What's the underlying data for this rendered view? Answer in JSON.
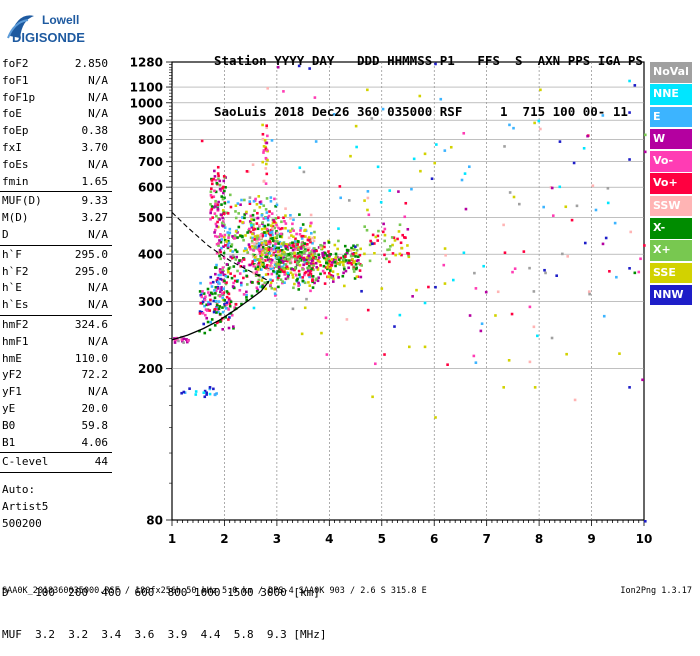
{
  "logo": {
    "line1": "Lowell",
    "line2": "DIGISONDE"
  },
  "header": {
    "row1": "Station YYYY DAY   DDD HHMMSS P1   FFS  S  AXN PPS IGA PS",
    "row2": "SaoLuis 2018 Dec26 360 035000 RSF     1  715 100 00- 11"
  },
  "params": [
    {
      "label": "foF2",
      "value": "2.850"
    },
    {
      "label": "foF1",
      "value": "N/A"
    },
    {
      "label": "foF1p",
      "value": "N/A"
    },
    {
      "label": "foE",
      "value": "N/A"
    },
    {
      "label": "foEp",
      "value": "0.38"
    },
    {
      "label": "fxI",
      "value": "3.70"
    },
    {
      "label": "foEs",
      "value": "N/A"
    },
    {
      "label": "fmin",
      "value": "1.65"
    },
    {
      "sep": true
    },
    {
      "label": "MUF(D)",
      "value": "9.33"
    },
    {
      "label": "M(D)",
      "value": "3.27"
    },
    {
      "label": "D",
      "value": "N/A"
    },
    {
      "sep": true
    },
    {
      "label": "h`F",
      "value": "295.0"
    },
    {
      "label": "h`F2",
      "value": "295.0"
    },
    {
      "label": "h`E",
      "value": "N/A"
    },
    {
      "label": "h`Es",
      "value": "N/A"
    },
    {
      "sep": true
    },
    {
      "label": "hmF2",
      "value": "324.6"
    },
    {
      "label": "hmF1",
      "value": "N/A"
    },
    {
      "label": "hmE",
      "value": "110.0"
    },
    {
      "label": "yF2",
      "value": "72.2"
    },
    {
      "label": "yF1",
      "value": "N/A"
    },
    {
      "label": "yE",
      "value": "20.0"
    },
    {
      "label": "B0",
      "value": "59.8"
    },
    {
      "label": "B1",
      "value": "4.06"
    },
    {
      "sep": true
    },
    {
      "label": "C-level",
      "value": "44"
    },
    {
      "sep": true
    }
  ],
  "auto": {
    "line1": "Auto:",
    "line2": "Artist5",
    "line3": "500200"
  },
  "legend": [
    {
      "label": "NoVal",
      "color": "#a0a0a0"
    },
    {
      "label": "NNE",
      "color": "#00e6ff"
    },
    {
      "label": "E",
      "color": "#3cb4ff"
    },
    {
      "label": "W",
      "color": "#b400a0"
    },
    {
      "label": "Vo-",
      "color": "#ff3cb4"
    },
    {
      "label": "Vo+",
      "color": "#ff0040"
    },
    {
      "label": "SSW",
      "color": "#ffb4b4"
    },
    {
      "label": "X-",
      "color": "#008c00"
    },
    {
      "label": "X+",
      "color": "#78c850"
    },
    {
      "label": "SSE",
      "color": "#d2d200"
    },
    {
      "label": "NNW",
      "color": "#1e1ec8"
    }
  ],
  "muf_table": {
    "row1": "D    100  200  400  600  800 1000 1500 3000 [km]",
    "row2": "MUF  3.2  3.2  3.4  3.6  3.9  4.4  5.8  9.3 [MHz]"
  },
  "footer": {
    "left": "SAA0K_2018360035000.RSF / 180fx256h 50 kHz 5.0 km / DPS-4 SAA0K 903 / 2.6 S 315.8 E",
    "right": "Ion2Png 1.3.17"
  },
  "chart_data": {
    "type": "scatter",
    "xlim": [
      1,
      10
    ],
    "ylim": [
      80,
      1280
    ],
    "y_scale": "log",
    "x_ticks": [
      "1",
      "2",
      "3",
      "4",
      "5",
      "6",
      "7",
      "8",
      "9",
      "10"
    ],
    "y_ticks": [
      "80",
      "200",
      "300",
      "400",
      "500",
      "600",
      "700",
      "800",
      "900",
      "1000",
      "1100",
      "1280"
    ],
    "grid": true,
    "profile_solid": [
      [
        1.0,
        238
      ],
      [
        1.3,
        245
      ],
      [
        1.6,
        255
      ],
      [
        1.9,
        268
      ],
      [
        2.2,
        285
      ],
      [
        2.5,
        305
      ],
      [
        2.7,
        320
      ],
      [
        2.85,
        340
      ]
    ],
    "profile_dashed": [
      [
        1.0,
        515
      ],
      [
        1.3,
        470
      ],
      [
        1.7,
        420
      ],
      [
        2.1,
        385
      ],
      [
        2.5,
        360
      ],
      [
        2.85,
        340
      ]
    ],
    "trace_x": [
      [
        1.5,
        253
      ],
      [
        1.6,
        250
      ],
      [
        1.7,
        255
      ],
      [
        1.8,
        262
      ],
      [
        1.9,
        268
      ],
      [
        2.0,
        275
      ],
      [
        2.1,
        282
      ],
      [
        2.2,
        290
      ],
      [
        2.3,
        298
      ],
      [
        2.4,
        305
      ],
      [
        2.5,
        313
      ],
      [
        2.6,
        322
      ],
      [
        2.7,
        330
      ],
      [
        2.8,
        340
      ]
    ],
    "clusters": [
      {
        "x": [
          1.8,
          3.0
        ],
        "y": [
          300,
          600
        ],
        "n": 380,
        "colors": [
          3,
          4,
          5,
          7,
          8,
          9,
          2
        ]
      },
      {
        "x": [
          2.5,
          3.7
        ],
        "y": [
          320,
          520
        ],
        "n": 420,
        "colors": [
          9,
          8,
          7,
          5,
          4,
          6,
          2
        ]
      },
      {
        "x": [
          3.0,
          4.6
        ],
        "y": [
          330,
          450
        ],
        "n": 300,
        "colors": [
          9,
          5,
          7,
          8,
          3
        ]
      },
      {
        "x": [
          1.5,
          2.2
        ],
        "y": [
          255,
          360
        ],
        "n": 120,
        "colors": [
          4,
          5,
          3,
          2,
          7,
          10
        ]
      },
      {
        "x": [
          1.7,
          2.0
        ],
        "y": [
          450,
          700
        ],
        "n": 70,
        "colors": [
          4,
          3,
          5,
          7,
          8
        ]
      },
      {
        "x": [
          2.7,
          2.8
        ],
        "y": [
          600,
          900
        ],
        "n": 28,
        "colors": [
          5,
          4,
          6,
          9
        ]
      },
      {
        "x": [
          4.6,
          5.5
        ],
        "y": [
          370,
          490
        ],
        "n": 45,
        "colors": [
          9,
          5,
          8
        ]
      },
      {
        "x": [
          1.0,
          1.3
        ],
        "y": [
          235,
          245
        ],
        "n": 18,
        "colors": [
          3,
          4,
          0
        ]
      },
      {
        "x": [
          1.1,
          1.9
        ],
        "y": [
          170,
          180
        ],
        "n": 14,
        "colors": [
          10,
          1,
          2
        ]
      },
      {
        "x": [
          2.0,
          10.0
        ],
        "y": [
          160,
          1280
        ],
        "n": 160,
        "colors": [
          1,
          2,
          3,
          4,
          5,
          6,
          9,
          10,
          0
        ]
      }
    ],
    "outliers": [
      {
        "x": 3.4,
        "y": 1260,
        "c": 10
      },
      {
        "x": 3.0,
        "y": 1250,
        "c": 3
      },
      {
        "x": 3.6,
        "y": 1240,
        "c": 10
      },
      {
        "x": 6.0,
        "y": 1275,
        "c": 10
      },
      {
        "x": 9.8,
        "y": 1120,
        "c": 10
      },
      {
        "x": 9.7,
        "y": 1150,
        "c": 1
      },
      {
        "x": 9.7,
        "y": 950,
        "c": 10
      },
      {
        "x": 10.0,
        "y": 830,
        "c": 8
      },
      {
        "x": 9.7,
        "y": 715,
        "c": 10
      },
      {
        "x": 5.7,
        "y": 1050,
        "c": 9
      },
      {
        "x": 4.7,
        "y": 1090,
        "c": 9
      },
      {
        "x": 8.0,
        "y": 1090,
        "c": 9
      },
      {
        "x": 6.1,
        "y": 1030,
        "c": 2
      },
      {
        "x": 5.0,
        "y": 970,
        "c": 2
      },
      {
        "x": 6.3,
        "y": 770,
        "c": 9
      },
      {
        "x": 5.8,
        "y": 740,
        "c": 9
      },
      {
        "x": 8.0,
        "y": 860,
        "c": 6
      },
      {
        "x": 9.0,
        "y": 610,
        "c": 6
      },
      {
        "x": 10.0,
        "y": 80,
        "c": 10
      },
      {
        "x": 9.7,
        "y": 180,
        "c": 10
      },
      {
        "x": 6.0,
        "y": 150,
        "c": 9
      },
      {
        "x": 4.8,
        "y": 170,
        "c": 9
      },
      {
        "x": 7.3,
        "y": 180,
        "c": 9
      },
      {
        "x": 7.9,
        "y": 180,
        "c": 9
      },
      {
        "x": 9.8,
        "y": 360,
        "c": 7
      },
      {
        "x": 9.7,
        "y": 370,
        "c": 10
      },
      {
        "x": 7.8,
        "y": 210,
        "c": 6
      },
      {
        "x": 8.5,
        "y": 220,
        "c": 9
      },
      {
        "x": 5.8,
        "y": 230,
        "c": 9
      },
      {
        "x": 5.8,
        "y": 300,
        "c": 1
      },
      {
        "x": 5.5,
        "y": 230,
        "c": 9
      },
      {
        "x": 6.0,
        "y": 330,
        "c": 10
      },
      {
        "x": 3.1,
        "y": 1080,
        "c": 4
      },
      {
        "x": 3.7,
        "y": 1040,
        "c": 4
      },
      {
        "x": 2.8,
        "y": 1100,
        "c": 6
      },
      {
        "x": 1.55,
        "y": 800,
        "c": 5
      },
      {
        "x": 1.6,
        "y": 170,
        "c": 10
      },
      {
        "x": 1.7,
        "y": 180,
        "c": 10
      },
      {
        "x": 1.2,
        "y": 175,
        "c": 10
      },
      {
        "x": 1.8,
        "y": 172,
        "c": 2
      }
    ]
  }
}
